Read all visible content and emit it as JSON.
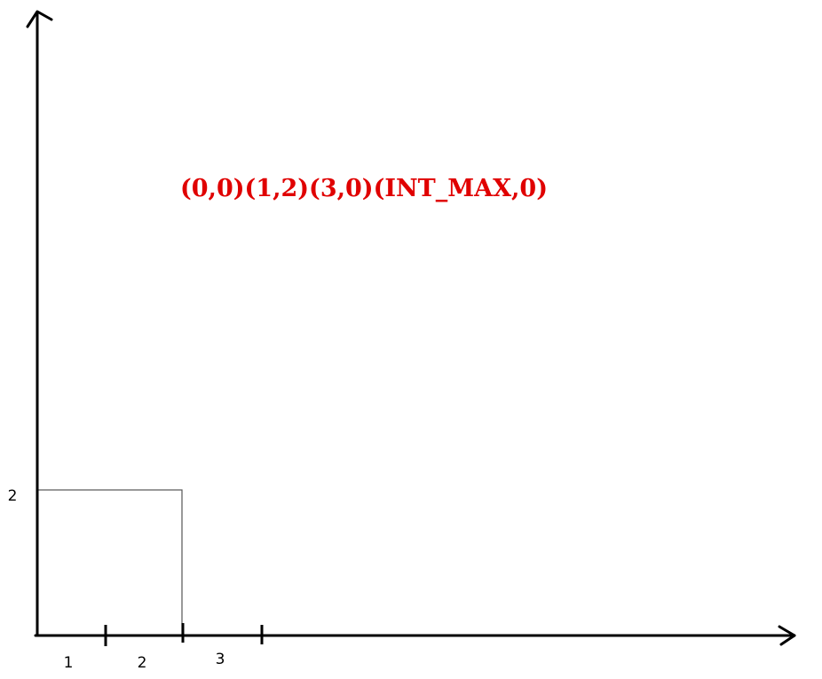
{
  "annotation": {
    "points_label": "(0,0)(1,2)(3,0)(INT_MAX,0)",
    "color": "#e00000"
  },
  "x_axis": {
    "tick_labels": [
      "1",
      "2",
      "3"
    ]
  },
  "y_axis": {
    "tick_labels": [
      "2"
    ]
  },
  "rectangle": {
    "x_range": [
      0,
      2
    ],
    "y_range": [
      0,
      2
    ],
    "stroke_color": "#555555"
  },
  "tick_marks": {
    "x_values": [
      1,
      2,
      3
    ],
    "y_values": [
      0
    ]
  }
}
